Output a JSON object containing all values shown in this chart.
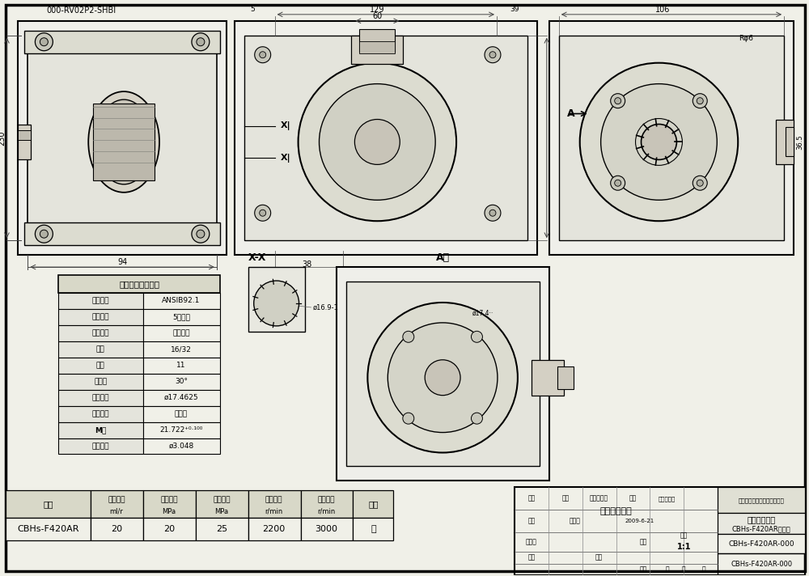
{
  "bg_color": "#f0f0e8",
  "border_color": "#000000",
  "title_text": "000-RV02P2-SHBI",
  "drawing_title": "外连接尺寸图",
  "company": "青州流体华液压科技有限公司",
  "product_name": "CBHs-F420AR齿轮泵",
  "drawing_number": "CBHs-F420AR-000",
  "scale": "1:1",
  "spline_table_title": "渐开线花键参数表",
  "spline_rows": [
    [
      "花键规格",
      "ANSIB92.1"
    ],
    [
      "精度等级",
      "5级精度"
    ],
    [
      "配合类型",
      "齿側配合"
    ],
    [
      "径节",
      "16/32"
    ],
    [
      "齿数",
      "11"
    ],
    [
      "压力角",
      "30°"
    ],
    [
      "节圆直径",
      "ø17.4625"
    ],
    [
      "齿根形状",
      "平齿根"
    ],
    [
      "M値",
      "21.722⁺⁰·¹⁰⁰"
    ],
    [
      "测量直径",
      "ø3.048"
    ]
  ],
  "param_headers": [
    "型号",
    "额定排量\nml/r",
    "额定压力\nMPa",
    "最高压力\nMPa",
    "额定转速\nr/min",
    "最高转速\nr/min",
    "旋向"
  ],
  "param_row": [
    "CBHs-F420AR",
    "20",
    "20",
    "25",
    "2200",
    "3000",
    "右"
  ],
  "param_col_widths": [
    105,
    65,
    65,
    65,
    65,
    65,
    50
  ],
  "design_label": "设计",
  "design_person": "尹吉发",
  "design_date": "2009-6-21",
  "approval_label": "审批化",
  "weight_label": "重量",
  "scale_label": "比例",
  "craft_label": "工艺",
  "check_label": "检核",
  "mark_label": "标记",
  "partition_label": "分区",
  "doc_label": "更改文件号",
  "count_label": "数量",
  "date_short": "年、月、日",
  "fu_label": "専业",
  "jue_label": "局",
  "zhang_label": "签",
  "date_label": "日"
}
